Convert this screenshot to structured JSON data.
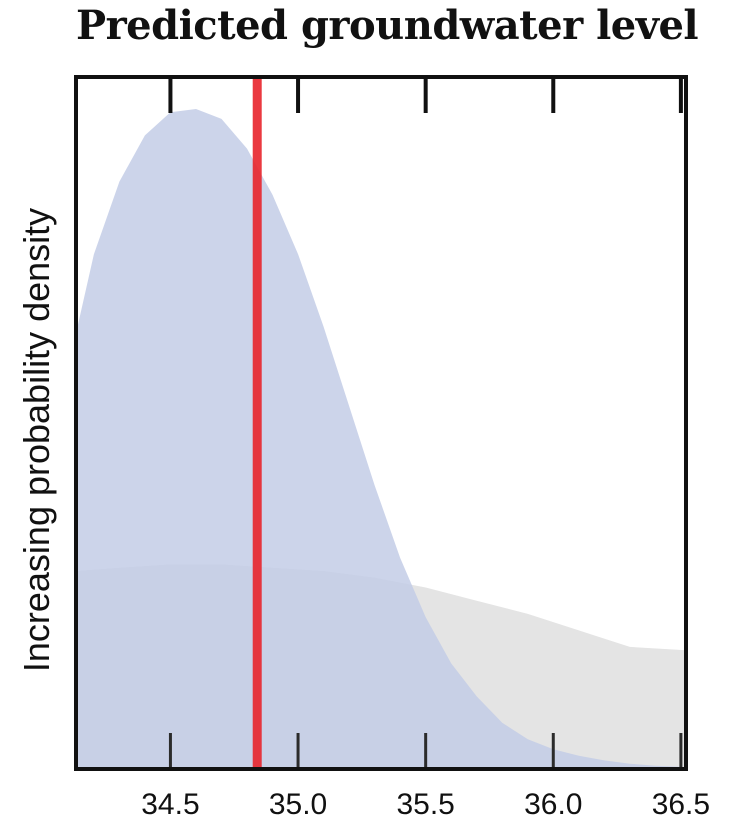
{
  "chart_data": {
    "type": "area",
    "title": "Predicted groundwater level",
    "xlabel": "",
    "ylabel": "Increasing probability density",
    "xlim": [
      34.13,
      36.52
    ],
    "ylim": [
      0,
      1
    ],
    "x_ticks": [
      "34.5",
      "35.0",
      "35.5",
      "36.0",
      "36.5"
    ],
    "grid": false,
    "legend": "none",
    "series": [
      {
        "color": "#e4e4e4",
        "x": [
          34.13,
          34.3,
          34.5,
          34.7,
          34.9,
          35.1,
          35.3,
          35.5,
          35.7,
          35.9,
          36.1,
          36.3,
          36.52
        ],
        "y": [
          0.3,
          0.305,
          0.31,
          0.31,
          0.305,
          0.3,
          0.29,
          0.275,
          0.255,
          0.235,
          0.21,
          0.185,
          0.18
        ]
      },
      {
        "color": "#c3cde6",
        "x": [
          34.13,
          34.2,
          34.3,
          34.4,
          34.5,
          34.6,
          34.7,
          34.8,
          34.9,
          35.0,
          35.1,
          35.2,
          35.3,
          35.4,
          35.5,
          35.6,
          35.7,
          35.8,
          35.9,
          36.0,
          36.1,
          36.2,
          36.3,
          36.4,
          36.52
        ],
        "y": [
          0.66,
          0.78,
          0.89,
          0.96,
          0.995,
          1.0,
          0.985,
          0.94,
          0.87,
          0.78,
          0.67,
          0.55,
          0.43,
          0.32,
          0.23,
          0.16,
          0.11,
          0.07,
          0.045,
          0.03,
          0.02,
          0.013,
          0.008,
          0.005,
          0.003
        ]
      }
    ],
    "marker": {
      "x": 34.84,
      "color": "#e8232b"
    }
  }
}
